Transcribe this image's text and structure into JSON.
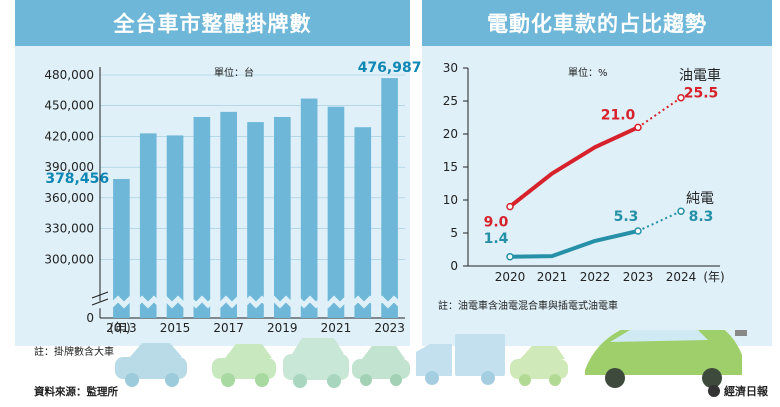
{
  "left": {
    "title": "全台車市整體掛牌數",
    "unit": "單位：台",
    "note": "註：掛牌數含大車"
  },
  "right": {
    "title": "電動化車款的占比趨勢",
    "unit": "單位：%",
    "note": "註：油電車含油電混合車與插電式油電車"
  },
  "footer": {
    "source": "資料來源：監理所",
    "brand": "經濟日報"
  },
  "chart_data": [
    {
      "type": "bar",
      "title": "全台車市整體掛牌數",
      "categories": [
        "2013",
        "2014",
        "2015",
        "2016",
        "2017",
        "2018",
        "2019",
        "2020",
        "2021",
        "2022",
        "2023"
      ],
      "x_tick_labels": [
        "(年)",
        "2013",
        "2015",
        "2017",
        "2019",
        "2021",
        "2023"
      ],
      "values": [
        378456,
        423000,
        421000,
        439000,
        444000,
        434000,
        439000,
        457000,
        449000,
        429000,
        476987
      ],
      "value_labels": {
        "2013": "378,456",
        "2023": "476,987"
      },
      "y_tick_labels": [
        "480,000",
        "450,000",
        "420,000",
        "390,000",
        "360,000",
        "330,000",
        "300,000",
        "0"
      ],
      "ylim": [
        270000,
        480000
      ],
      "axis_break": true,
      "color": "#6fb7d8",
      "label_color": "#0f87b5"
    },
    {
      "type": "line",
      "title": "電動化車款的占比趨勢",
      "x": [
        "2020",
        "2021",
        "2022",
        "2023",
        "2024"
      ],
      "x_tick_labels": [
        "2020",
        "2021",
        "2022",
        "2023",
        "2024",
        "(年)"
      ],
      "y_tick_labels": [
        "30",
        "25",
        "20",
        "15",
        "10",
        "5",
        "0"
      ],
      "ylim": [
        0,
        30
      ],
      "series": [
        {
          "name": "油電車",
          "values": [
            9.0,
            14.0,
            18.0,
            21.0,
            25.5
          ],
          "projected_from": "2023",
          "labels": {
            "2020": "9.0",
            "2023": "21.0",
            "2024": "25.5"
          },
          "color": "#d7212b"
        },
        {
          "name": "純電",
          "values": [
            1.4,
            1.5,
            3.8,
            5.3,
            8.3
          ],
          "projected_from": "2023",
          "labels": {
            "2020": "1.4",
            "2023": "5.3",
            "2024": "8.3"
          },
          "color": "#2590a8"
        }
      ]
    }
  ]
}
